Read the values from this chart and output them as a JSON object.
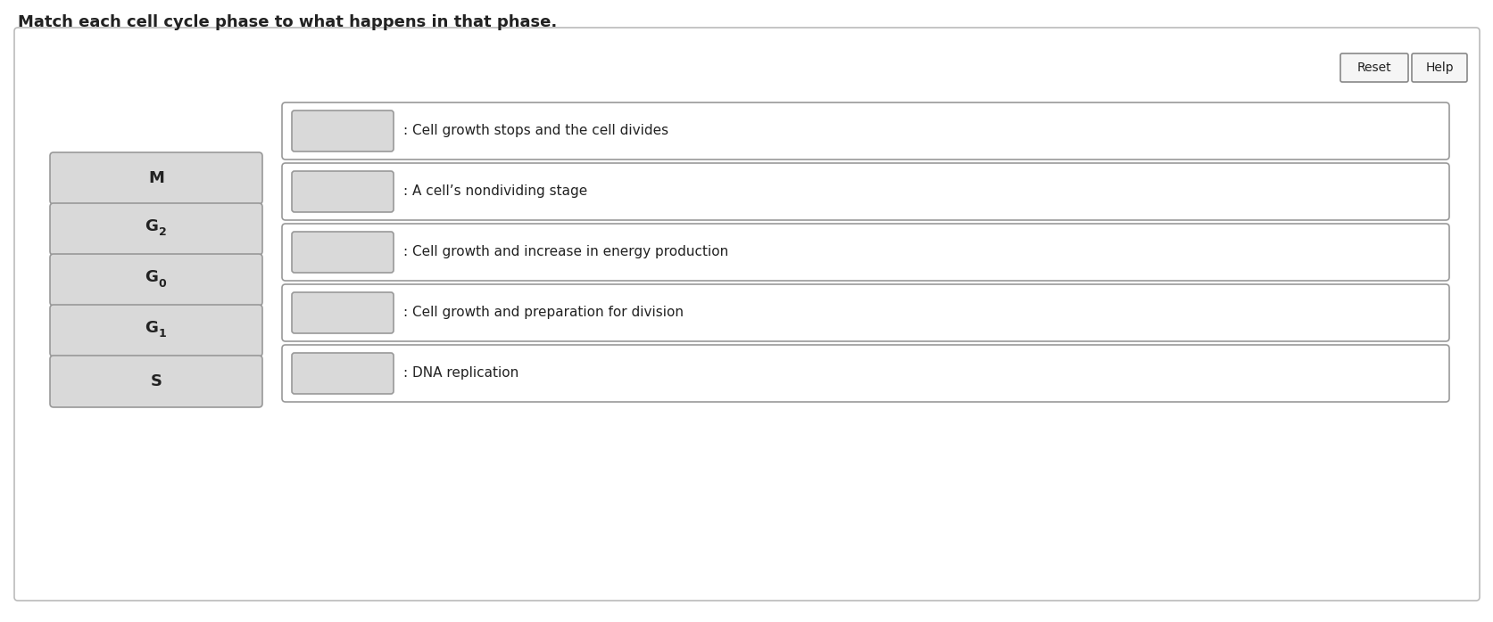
{
  "title": "Match each cell cycle phase to what happens in that phase.",
  "title_fontsize": 13,
  "title_fontweight": "bold",
  "bg_color": "#ffffff",
  "outer_box_color": "#bbbbbb",
  "left_label_bases": [
    "M",
    "G",
    "G",
    "G",
    "S"
  ],
  "left_label_subscripts": [
    null,
    "2",
    "0",
    "1",
    null
  ],
  "right_descriptions": [
    ": Cell growth stops and the cell divides",
    ": A cell’s nondividing stage",
    ": Cell growth and increase in energy production",
    ": Cell growth and preparation for division",
    ": DNA replication"
  ],
  "left_box_facecolor": "#d9d9d9",
  "left_box_edgecolor": "#999999",
  "right_box_facecolor": "#ffffff",
  "right_box_edgecolor": "#999999",
  "small_box_facecolor": "#d9d9d9",
  "small_box_edgecolor": "#999999",
  "reset_btn_text": "Reset",
  "help_btn_text": "Help",
  "btn_edgecolor": "#888888",
  "btn_facecolor": "#f5f5f5",
  "text_color": "#222222",
  "desc_fontsize": 11,
  "label_fontsize": 13,
  "sub_fontsize": 9
}
